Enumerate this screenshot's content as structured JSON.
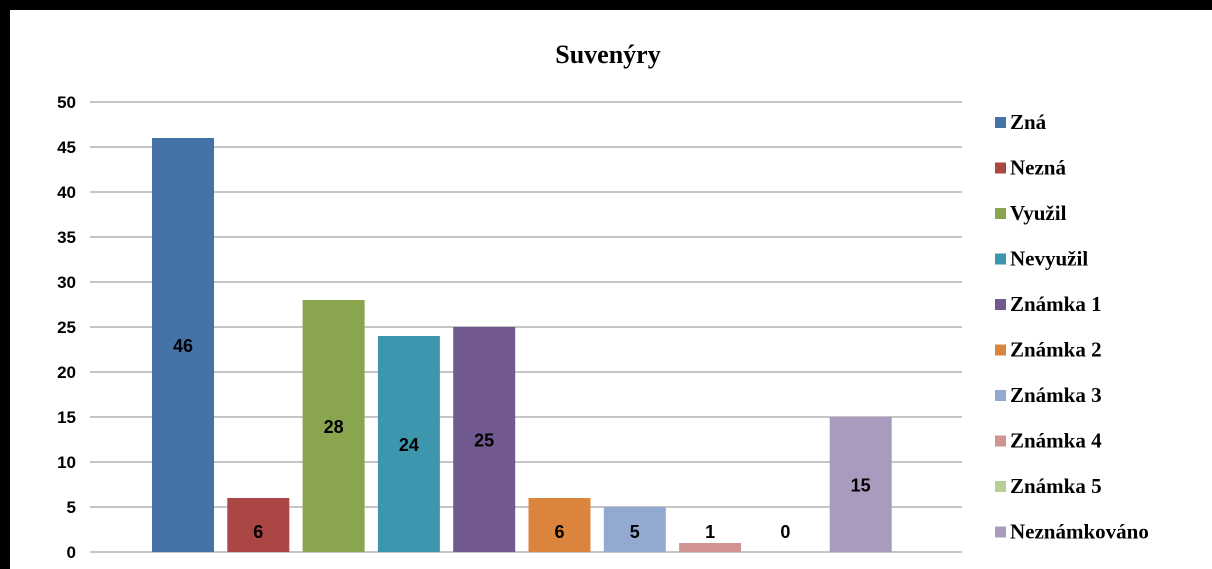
{
  "chart_data": {
    "type": "bar",
    "title": "Suvenýry",
    "xlabel": "",
    "ylabel": "",
    "ylim": [
      0,
      50
    ],
    "yticks": [
      0,
      5,
      10,
      15,
      20,
      25,
      30,
      35,
      40,
      45,
      50
    ],
    "grid": true,
    "legend_position": "right",
    "series": [
      {
        "name": "Zná",
        "value": 46,
        "color": "#4572A7"
      },
      {
        "name": "Nezná",
        "value": 6,
        "color": "#AA4643"
      },
      {
        "name": "Využil",
        "value": 28,
        "color": "#89A54E"
      },
      {
        "name": "Nevyužil",
        "value": 24,
        "color": "#3D96AE"
      },
      {
        "name": "Známka 1",
        "value": 25,
        "color": "#71588F"
      },
      {
        "name": "Známka 2",
        "value": 6,
        "color": "#DB843D"
      },
      {
        "name": "Známka 3",
        "value": 5,
        "color": "#93A9CF"
      },
      {
        "name": "Známka 4",
        "value": 1,
        "color": "#D19392"
      },
      {
        "name": "Známka 5",
        "value": 0,
        "color": "#B9CD96"
      },
      {
        "name": "Neznámkováno",
        "value": 15,
        "color": "#A99BBD"
      }
    ]
  }
}
